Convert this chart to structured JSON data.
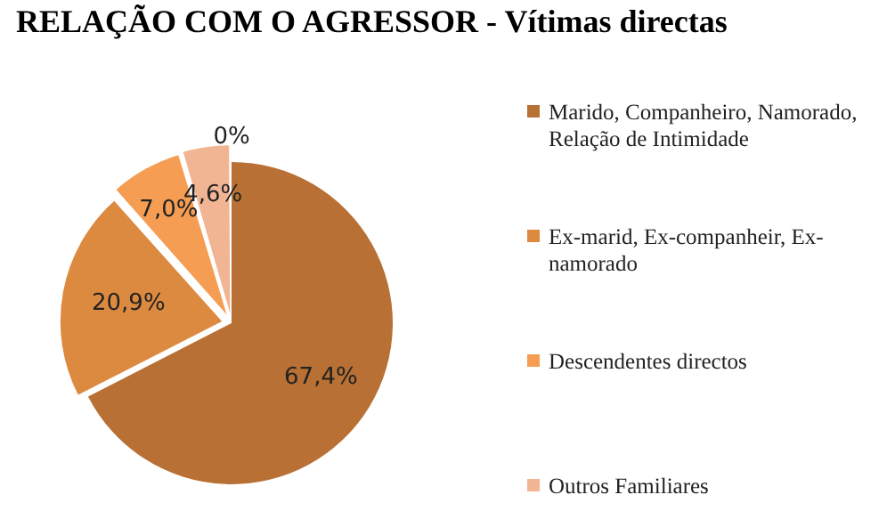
{
  "chart_data": {
    "type": "pie",
    "title": "RELAÇÃO COM O AGRESSOR - Vítimas directas",
    "categories": [
      "Marido, Companheiro, Namorado, Relação de Intimidade",
      "Ex-marid, Ex-companheir, Ex-namorado",
      "Descendentes directos",
      "Outros Familiares",
      null
    ],
    "values": [
      67.4,
      20.9,
      7.0,
      4.6,
      0
    ],
    "value_labels": [
      "67,4%",
      "20,9%",
      "7,0%",
      "4,6%",
      "0%"
    ],
    "colors": [
      "#b87034",
      "#dd8a41",
      "#f59d52",
      "#f2b594",
      "#f8cdb8"
    ],
    "legend": "right"
  }
}
